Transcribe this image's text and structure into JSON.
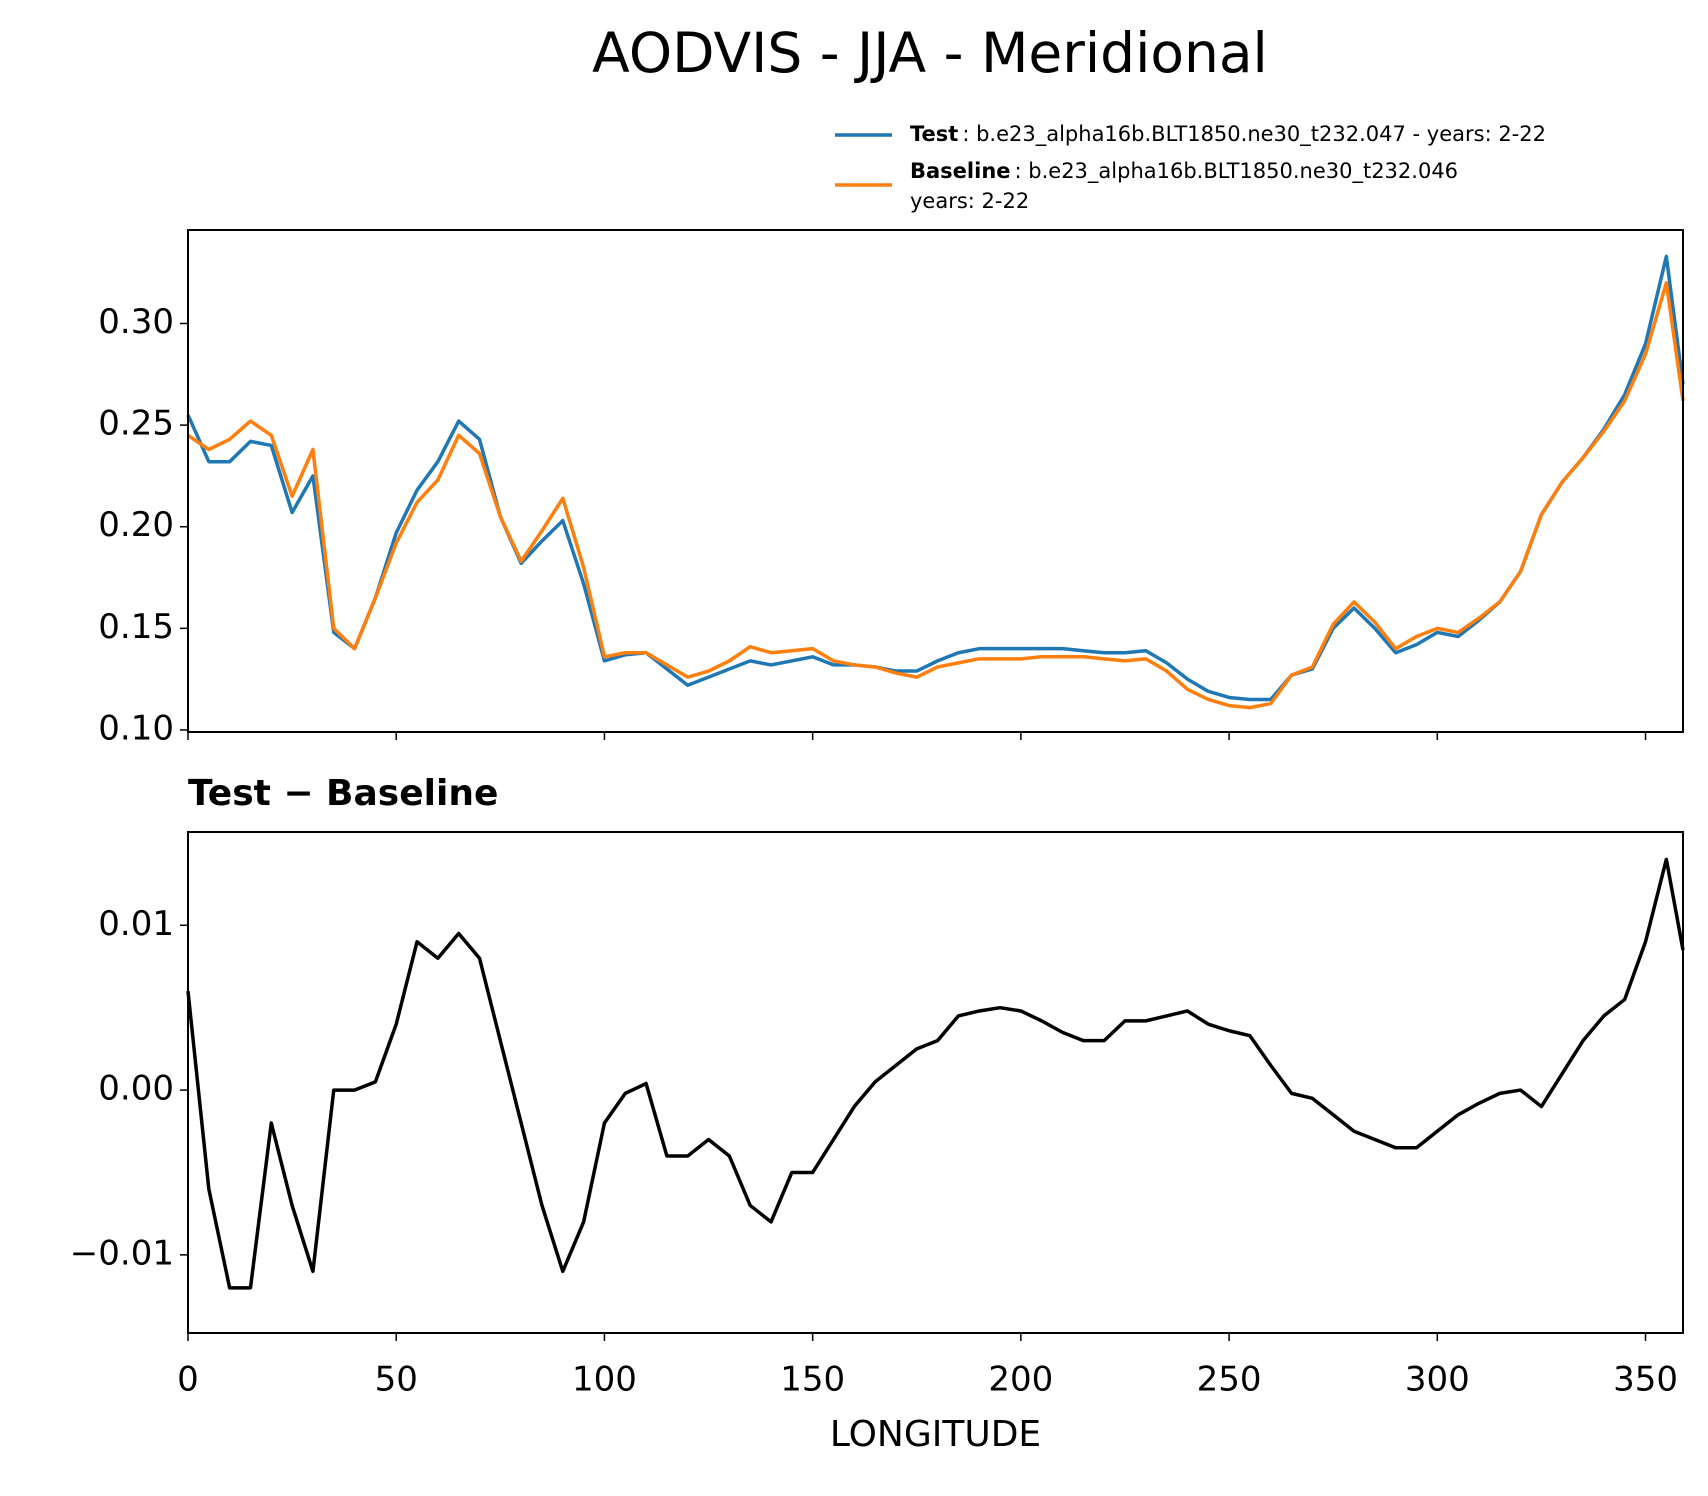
{
  "chart_data": [
    {
      "type": "line",
      "title": "AODVIS - JJA - Meridional",
      "x": [
        0,
        5,
        10,
        15,
        20,
        25,
        30,
        35,
        40,
        45,
        50,
        55,
        60,
        65,
        70,
        75,
        80,
        85,
        90,
        95,
        100,
        105,
        110,
        115,
        120,
        125,
        130,
        135,
        140,
        145,
        150,
        155,
        160,
        165,
        170,
        175,
        180,
        185,
        190,
        195,
        200,
        205,
        210,
        215,
        220,
        225,
        230,
        235,
        240,
        245,
        250,
        255,
        260,
        265,
        270,
        275,
        280,
        285,
        290,
        295,
        300,
        305,
        310,
        315,
        320,
        325,
        330,
        335,
        340,
        345,
        350,
        355,
        359
      ],
      "series": [
        {
          "name": "Test",
          "description": [
            ": b.e23_alpha16b.BLT1850.ne30_t232.047 - years: 2-22"
          ],
          "color": "#1f77b4",
          "values": [
            0.255,
            0.232,
            0.232,
            0.242,
            0.24,
            0.207,
            0.225,
            0.148,
            0.14,
            0.165,
            0.197,
            0.218,
            0.232,
            0.252,
            0.243,
            0.205,
            0.182,
            0.193,
            0.203,
            0.172,
            0.134,
            0.137,
            0.138,
            0.13,
            0.122,
            0.126,
            0.13,
            0.134,
            0.132,
            0.134,
            0.136,
            0.132,
            0.132,
            0.131,
            0.129,
            0.129,
            0.134,
            0.138,
            0.14,
            0.14,
            0.14,
            0.14,
            0.14,
            0.139,
            0.138,
            0.138,
            0.139,
            0.133,
            0.125,
            0.119,
            0.116,
            0.115,
            0.115,
            0.127,
            0.13,
            0.15,
            0.16,
            0.15,
            0.138,
            0.142,
            0.148,
            0.146,
            0.154,
            0.163,
            0.178,
            0.206,
            0.222,
            0.234,
            0.248,
            0.265,
            0.29,
            0.333,
            0.27
          ]
        },
        {
          "name": "Baseline",
          "description": [
            ": b.e23_alpha16b.BLT1850.ne30_t232.046",
            "years: 2-22"
          ],
          "color": "#ff7f0e",
          "values": [
            0.245,
            0.238,
            0.243,
            0.252,
            0.245,
            0.215,
            0.238,
            0.15,
            0.14,
            0.165,
            0.192,
            0.212,
            0.223,
            0.245,
            0.236,
            0.205,
            0.183,
            0.198,
            0.214,
            0.18,
            0.136,
            0.138,
            0.138,
            0.132,
            0.126,
            0.129,
            0.134,
            0.141,
            0.138,
            0.139,
            0.14,
            0.134,
            0.132,
            0.131,
            0.128,
            0.126,
            0.131,
            0.133,
            0.135,
            0.135,
            0.135,
            0.136,
            0.136,
            0.136,
            0.135,
            0.134,
            0.135,
            0.129,
            0.12,
            0.115,
            0.112,
            0.111,
            0.113,
            0.127,
            0.131,
            0.152,
            0.163,
            0.153,
            0.14,
            0.146,
            0.15,
            0.148,
            0.155,
            0.163,
            0.178,
            0.206,
            0.222,
            0.234,
            0.247,
            0.262,
            0.285,
            0.32,
            0.262
          ]
        }
      ],
      "xlim": [
        0,
        359
      ],
      "xticks": [
        0,
        50,
        100,
        150,
        200,
        250,
        300,
        350
      ],
      "ylim": [
        0.099,
        0.346
      ],
      "yticks": [
        {
          "value": 0.1,
          "label": "0.10"
        },
        0.15,
        {
          "value": 0.2,
          "label": "0.20"
        },
        0.25,
        {
          "value": 0.3,
          "label": "0.30"
        }
      ]
    },
    {
      "type": "line",
      "title": "Test − Baseline",
      "xlabel": "LONGITUDE",
      "x": [
        0,
        5,
        10,
        15,
        20,
        25,
        30,
        35,
        40,
        45,
        50,
        55,
        60,
        65,
        70,
        75,
        80,
        85,
        90,
        95,
        100,
        105,
        110,
        115,
        120,
        125,
        130,
        135,
        140,
        145,
        150,
        155,
        160,
        165,
        170,
        175,
        180,
        185,
        190,
        195,
        200,
        205,
        210,
        215,
        220,
        225,
        230,
        235,
        240,
        245,
        250,
        255,
        260,
        265,
        270,
        275,
        280,
        285,
        290,
        295,
        300,
        305,
        310,
        315,
        320,
        325,
        330,
        335,
        340,
        345,
        350,
        355,
        359
      ],
      "series": [
        {
          "color": "#000000",
          "values": [
            0.006,
            -0.006,
            -0.012,
            -0.012,
            -0.002,
            -0.007,
            -0.011,
            0,
            0,
            0.0005,
            0.004,
            0.009,
            0.008,
            0.0095,
            0.008,
            0.003,
            -0.002,
            -0.007,
            -0.011,
            -0.008,
            -0.002,
            -0.0002,
            0.0004,
            -0.004,
            -0.004,
            -0.003,
            -0.004,
            -0.007,
            -0.008,
            -0.005,
            -0.005,
            -0.003,
            -0.001,
            0.0005,
            0.0015,
            0.0025,
            0.003,
            0.0045,
            0.0048,
            0.005,
            0.0048,
            0.0042,
            0.0035,
            0.003,
            0.003,
            0.0042,
            0.0042,
            0.0045,
            0.0048,
            0.004,
            0.0036,
            0.0033,
            0.0015,
            -0.0002,
            -0.0005,
            -0.0015,
            -0.0025,
            -0.003,
            -0.0035,
            -0.0035,
            -0.0025,
            -0.0015,
            -0.0008,
            -0.0002,
            0,
            -0.001,
            0.001,
            0.003,
            0.0045,
            0.0055,
            0.009,
            0.014,
            0.0085
          ]
        }
      ],
      "xlim": [
        0,
        359
      ],
      "xticks": [
        0,
        50,
        100,
        150,
        200,
        250,
        300,
        350
      ],
      "ylim": [
        -0.01474,
        0.01566
      ],
      "yticks": [
        {
          "value": -0.01,
          "label": "−0.01"
        },
        {
          "value": 0,
          "label": "0.00"
        },
        0.01
      ]
    }
  ]
}
